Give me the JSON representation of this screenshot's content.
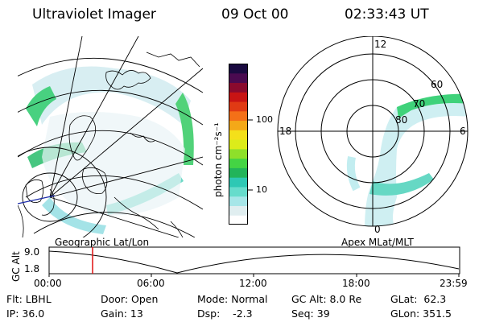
{
  "header": {
    "title": "Ultraviolet Imager",
    "date": "09 Oct 00",
    "time": "02:33:43 UT"
  },
  "colorbar": {
    "label": "photon cm⁻²s⁻¹",
    "ticks": [
      "100",
      "10"
    ],
    "scale": "log",
    "colors": [
      "#ffffff",
      "#e0eef0",
      "#a6e6e8",
      "#66dccc",
      "#2ec8b4",
      "#22b45a",
      "#44d444",
      "#8ee02a",
      "#dcec1a",
      "#f4e01a",
      "#f4a818",
      "#f47018",
      "#e03a14",
      "#c81414",
      "#8a0a2e",
      "#4a0a50",
      "#1a0a40"
    ]
  },
  "left_map": {
    "caption": "Geographic Lat/Lon"
  },
  "right_map": {
    "caption": "Apex MLat/MLT",
    "lat_labels": [
      "60",
      "70",
      "80"
    ],
    "mlt_labels": [
      "12",
      "18",
      "0",
      "6"
    ]
  },
  "gc_plot": {
    "ylabel": "GC Alt",
    "yticks": [
      "9.0",
      "1.8"
    ],
    "xticks": [
      "00:00",
      "06:00",
      "12:00",
      "18:00",
      "23:59"
    ],
    "marker_time": "02:33:43"
  },
  "footer": {
    "flt": "Flt: LBHL",
    "ip": "IP: 36.0",
    "door": "Door: Open",
    "gain": "Gain: 13",
    "mode": "Mode: Normal",
    "dsp": "Dsp:    -2.3",
    "gcalt": "GC Alt: 8.0 Re",
    "seq": "Seq: 39",
    "glat": "GLat:  62.3",
    "glon": "GLon: 351.5"
  }
}
